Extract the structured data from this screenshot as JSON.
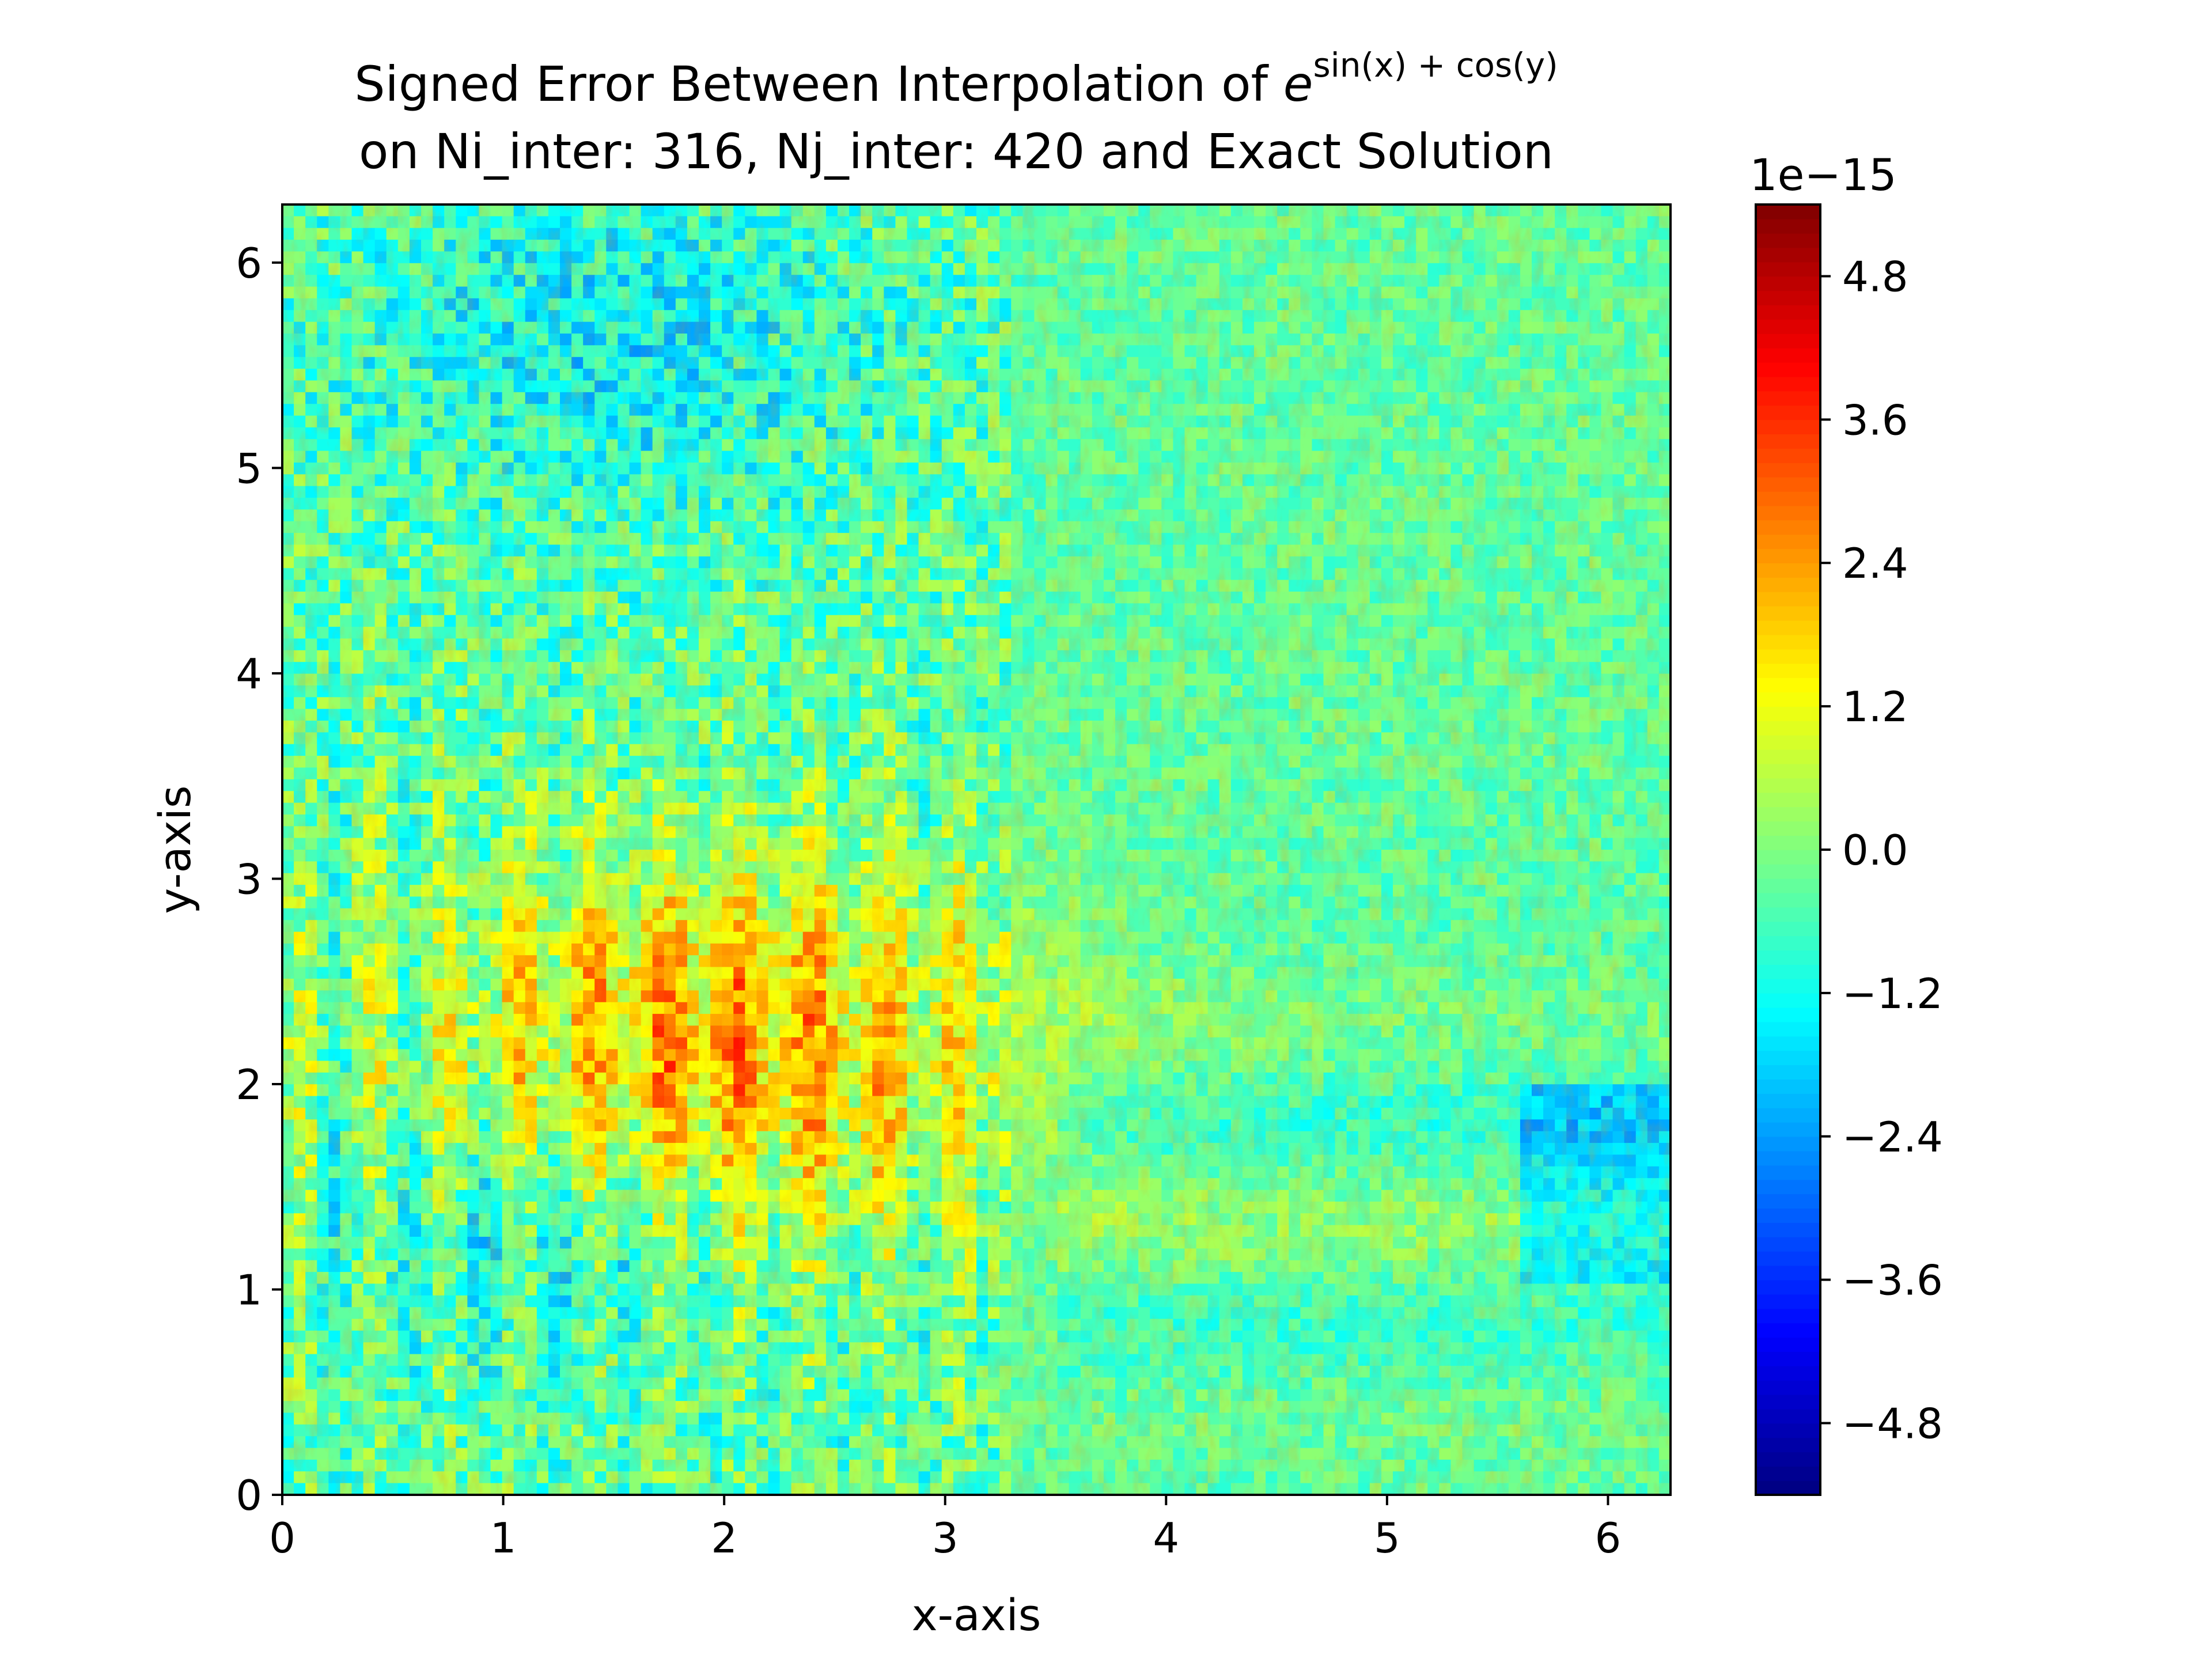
{
  "chart_data": {
    "type": "heatmap",
    "title": {
      "line1_prefix": "Signed Error Between Interpolation of ",
      "base": "e",
      "exponent": "sin(x) + cos(y)",
      "line2": "on Ni_inter: 316, Nj_inter: 420 and Exact Solution"
    },
    "xlabel": "x-axis",
    "ylabel": "y-axis",
    "xlim": [
      0,
      6.283
    ],
    "ylim": [
      0,
      6.283
    ],
    "xticks": [
      0,
      1,
      2,
      3,
      4,
      5,
      6
    ],
    "yticks": [
      0,
      1,
      2,
      3,
      4,
      5,
      6
    ],
    "xtick_labels": [
      "0",
      "1",
      "2",
      "3",
      "4",
      "5",
      "6"
    ],
    "ytick_labels": [
      "0",
      "1",
      "2",
      "3",
      "4",
      "5",
      "6"
    ],
    "grid_shape": [
      316,
      420
    ],
    "colormap": "jet",
    "colorbar": {
      "range": [
        -5.4e-15,
        5.4e-15
      ],
      "ticks": [
        -4.8,
        -3.6,
        -2.4,
        -1.2,
        0.0,
        1.2,
        2.4,
        3.6,
        4.8
      ],
      "tick_labels": [
        "−4.8",
        "−3.6",
        "−2.4",
        "−1.2",
        "0.0",
        "1.2",
        "2.4",
        "3.6",
        "4.8"
      ],
      "offset_label": "1e−15"
    },
    "grid": false,
    "regions_description_values": {
      "background_typical": -0.4,
      "upper_left_minimum": -3.0,
      "central_band_maximum": 4.5,
      "lower_right_range": [
        -2.5,
        1.8
      ]
    }
  }
}
